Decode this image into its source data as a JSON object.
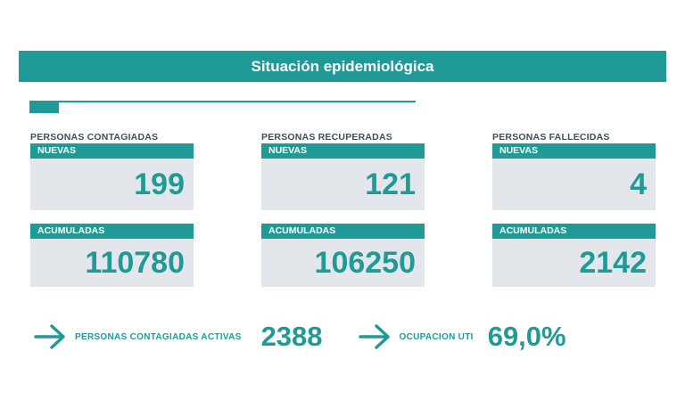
{
  "header": {
    "title": "Situación epidemiológica"
  },
  "columns": [
    {
      "label": "PERSONAS CONTAGIADAS",
      "new_label": "NUEVAS",
      "new_value": "199",
      "acc_label": "ACUMULADAS",
      "acc_value": "110780"
    },
    {
      "label": "PERSONAS RECUPERADAS",
      "new_label": "NUEVAS",
      "new_value": "121",
      "acc_label": "ACUMULADAS",
      "acc_value": "106250"
    },
    {
      "label": "PERSONAS FALLECIDAS",
      "new_label": "NUEVAS",
      "new_value": "4",
      "acc_label": "ACUMULADAS",
      "acc_value": "2142"
    }
  ],
  "summary": {
    "active_label": "PERSONAS CONTAGIADAS ACTIVAS",
    "active_value": "2388",
    "uti_label": "OCUPACION UTI",
    "uti_value": "69,0%"
  },
  "colors": {
    "accent": "#1f9a96",
    "card_bg": "#e3e7ec",
    "label_text": "#3d4f5c"
  },
  "icons": {
    "arrow": "arrow-right-icon"
  }
}
